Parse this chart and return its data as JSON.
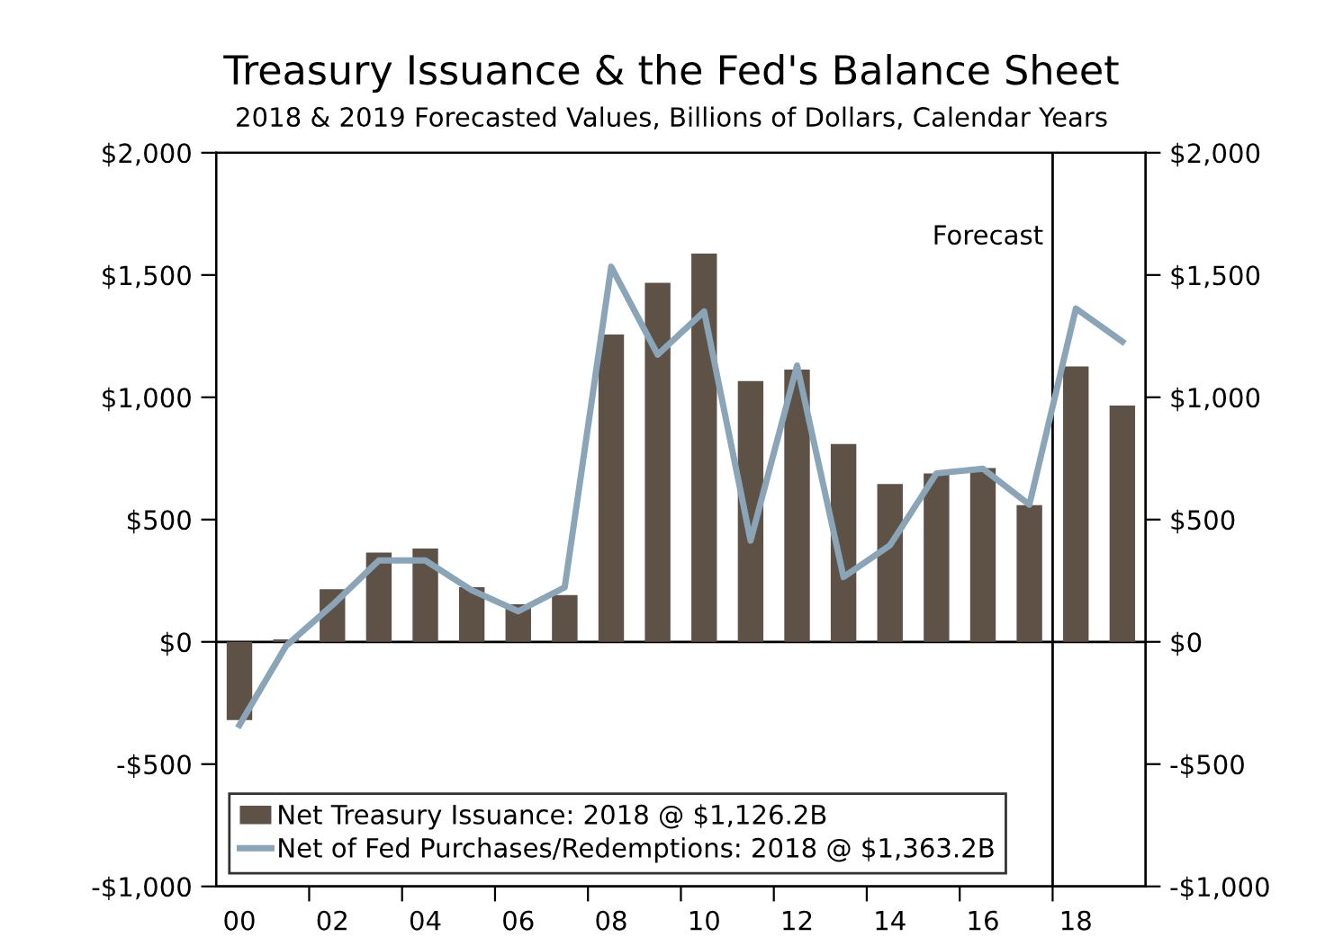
{
  "chart_data": {
    "type": "bar",
    "title": "Treasury Issuance & the Fed's Balance Sheet",
    "subtitle": "2018 & 2019 Forecasted Values, Billions of Dollars, Calendar Years",
    "x": [
      2000,
      2001,
      2002,
      2003,
      2004,
      2005,
      2006,
      2007,
      2008,
      2009,
      2010,
      2011,
      2012,
      2013,
      2014,
      2015,
      2016,
      2017,
      2018,
      2019
    ],
    "series": [
      {
        "name": "Net Treasury Issuance: 2018 @ $1,126.2B",
        "color": "#5e5247",
        "values": [
          -320,
          10,
          215,
          365,
          382,
          223,
          154,
          191,
          1257,
          1468,
          1588,
          1066,
          1113,
          809,
          645,
          689,
          711,
          559,
          1126.2,
          966
        ]
      },
      {
        "name": "Net of Fed Purchases/Redemptions: 2018 @ $1,363.2B",
        "type": "line",
        "color": "#8aa5b8",
        "marker": "none",
        "line_style": "solid",
        "values": [
          -340,
          -17,
          150,
          333,
          333,
          211,
          125,
          223,
          1534,
          1174,
          1351,
          414,
          1130,
          265,
          395,
          689,
          708,
          561,
          1363.2,
          1228
        ]
      }
    ],
    "xlim": [
      1999.5,
      2019.5
    ],
    "xticks": [
      {
        "value": 2000,
        "label": "00"
      },
      {
        "value": 2001.5,
        "label": null
      },
      {
        "value": 2002,
        "label": "02"
      },
      {
        "value": 2003.5,
        "label": null
      },
      {
        "value": 2004,
        "label": "04"
      },
      {
        "value": 2005.5,
        "label": null
      },
      {
        "value": 2006,
        "label": "06"
      },
      {
        "value": 2007.5,
        "label": null
      },
      {
        "value": 2008,
        "label": "08"
      },
      {
        "value": 2009.5,
        "label": null
      },
      {
        "value": 2010,
        "label": "10"
      },
      {
        "value": 2011.5,
        "label": null
      },
      {
        "value": 2012,
        "label": "12"
      },
      {
        "value": 2013.5,
        "label": null
      },
      {
        "value": 2014,
        "label": "14"
      },
      {
        "value": 2015.5,
        "label": null
      },
      {
        "value": 2016,
        "label": "16"
      },
      {
        "value": 2017.5,
        "label": null
      },
      {
        "value": 2018,
        "label": "18"
      }
    ],
    "ylim": [
      -1000,
      2000
    ],
    "yticks": [
      {
        "value": -1000,
        "label": "-$1,000"
      },
      {
        "value": -500,
        "label": "-$500"
      },
      {
        "value": 0,
        "label": "$0"
      },
      {
        "value": 500,
        "label": "$500"
      },
      {
        "value": 1000,
        "label": "$1,000"
      },
      {
        "value": 1500,
        "label": "$1,500"
      },
      {
        "value": 2000,
        "label": "$2,000"
      }
    ],
    "y2lim": [
      -1000,
      2000
    ],
    "y2ticks": [
      {
        "value": -1000,
        "label": "-$1,000"
      },
      {
        "value": -500,
        "label": "-$500"
      },
      {
        "value": 0,
        "label": "$0"
      },
      {
        "value": 500,
        "label": "$500"
      },
      {
        "value": 1000,
        "label": "$1,000"
      },
      {
        "value": 1500,
        "label": "$1,500"
      },
      {
        "value": 2000,
        "label": "$2,000"
      }
    ],
    "ref_lines": [
      {
        "axis": "x",
        "value": 2017.5,
        "label": "Forecast",
        "color": "#000000",
        "line_style": "solid"
      },
      {
        "axis": "y",
        "value": 0,
        "color": "#000000",
        "line_style": "solid"
      }
    ],
    "grid": false,
    "legend": "bottom left"
  }
}
